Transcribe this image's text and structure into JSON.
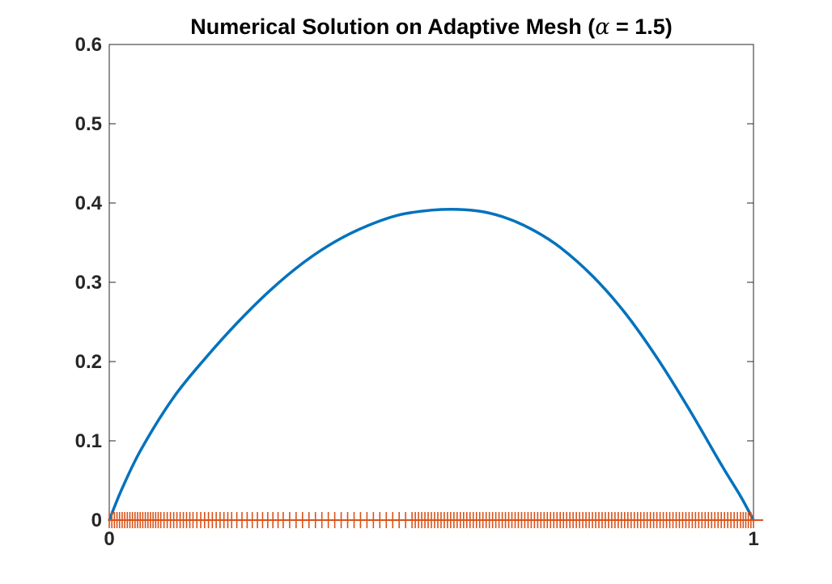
{
  "chart_data": {
    "type": "line",
    "title": {
      "prefix": "Numerical Solution on Adaptive Mesh (",
      "symbol": "α",
      "suffix": " = 1.5)"
    },
    "xlabel": "",
    "ylabel": "",
    "xlim": [
      0,
      1
    ],
    "ylim": [
      0,
      0.6
    ],
    "x_ticks": [
      "0",
      "1"
    ],
    "y_ticks": [
      "0",
      "0.1",
      "0.2",
      "0.3",
      "0.4",
      "0.5",
      "0.6"
    ],
    "grid": false,
    "legend": "none",
    "series": [
      {
        "kind": "line",
        "color": "#0072BD",
        "x": [
          0,
          0.02,
          0.05,
          0.1,
          0.15,
          0.2,
          0.25,
          0.3,
          0.35,
          0.4,
          0.45,
          0.5,
          0.54,
          0.58,
          0.62,
          0.66,
          0.7,
          0.75,
          0.8,
          0.85,
          0.9,
          0.95,
          0.98,
          1.0
        ],
        "y": [
          0,
          0.04,
          0.09,
          0.155,
          0.205,
          0.25,
          0.29,
          0.324,
          0.351,
          0.371,
          0.385,
          0.391,
          0.392,
          0.389,
          0.38,
          0.365,
          0.344,
          0.308,
          0.262,
          0.205,
          0.14,
          0.07,
          0.03,
          0
        ]
      },
      {
        "kind": "mesh",
        "color": "#D95319",
        "y": 0,
        "x": [
          0.0,
          0.004,
          0.008,
          0.012,
          0.016,
          0.02,
          0.024,
          0.028,
          0.032,
          0.036,
          0.04,
          0.044,
          0.048,
          0.052,
          0.056,
          0.06,
          0.064,
          0.068,
          0.072,
          0.076,
          0.08,
          0.085,
          0.09,
          0.095,
          0.1,
          0.105,
          0.11,
          0.115,
          0.12,
          0.125,
          0.13,
          0.136,
          0.142,
          0.148,
          0.154,
          0.16,
          0.166,
          0.172,
          0.178,
          0.184,
          0.19,
          0.198,
          0.206,
          0.214,
          0.222,
          0.23,
          0.238,
          0.246,
          0.254,
          0.262,
          0.27,
          0.28,
          0.29,
          0.3,
          0.31,
          0.32,
          0.33,
          0.34,
          0.35,
          0.36,
          0.37,
          0.38,
          0.39,
          0.4,
          0.41,
          0.42,
          0.43,
          0.44,
          0.45,
          0.46,
          0.47,
          0.475,
          0.48,
          0.485,
          0.49,
          0.495,
          0.5,
          0.505,
          0.51,
          0.515,
          0.52,
          0.525,
          0.53,
          0.535,
          0.54,
          0.545,
          0.55,
          0.555,
          0.56,
          0.565,
          0.57,
          0.575,
          0.58,
          0.585,
          0.59,
          0.595,
          0.6,
          0.605,
          0.61,
          0.615,
          0.62,
          0.625,
          0.63,
          0.635,
          0.64,
          0.645,
          0.65,
          0.655,
          0.66,
          0.665,
          0.67,
          0.675,
          0.68,
          0.685,
          0.69,
          0.695,
          0.7,
          0.705,
          0.71,
          0.715,
          0.72,
          0.725,
          0.73,
          0.735,
          0.74,
          0.745,
          0.75,
          0.755,
          0.76,
          0.765,
          0.77,
          0.775,
          0.78,
          0.785,
          0.79,
          0.795,
          0.8,
          0.805,
          0.81,
          0.815,
          0.82,
          0.825,
          0.83,
          0.835,
          0.84,
          0.845,
          0.85,
          0.855,
          0.86,
          0.865,
          0.87,
          0.875,
          0.88,
          0.885,
          0.89,
          0.895,
          0.9,
          0.905,
          0.91,
          0.915,
          0.92,
          0.925,
          0.93,
          0.935,
          0.94,
          0.945,
          0.95,
          0.955,
          0.96,
          0.965,
          0.97,
          0.975,
          0.98,
          0.984,
          0.988,
          0.992,
          0.996,
          1.0
        ]
      }
    ]
  }
}
